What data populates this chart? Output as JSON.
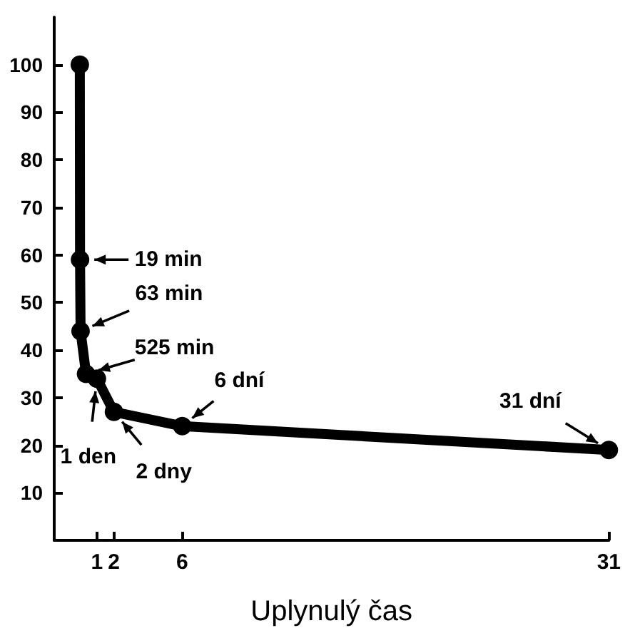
{
  "chart_data": {
    "type": "line",
    "xlabel": "Uplynulý čas",
    "x": [
      0,
      0.0132,
      0.0438,
      0.3646,
      1,
      2,
      6,
      31
    ],
    "series": [
      {
        "color": "#000000",
        "values": [
          100,
          59,
          44,
          35,
          34,
          27,
          24,
          19
        ]
      }
    ],
    "xlim": [
      -1.5,
      31
    ],
    "xticks": [
      1,
      2,
      6,
      31
    ],
    "ylim": [
      0,
      110
    ],
    "yticks": [
      10,
      20,
      30,
      40,
      50,
      60,
      70,
      80,
      90,
      100
    ],
    "grid": false,
    "marker": "circle",
    "line_style": "solid",
    "annotations": [
      {
        "text": "19 min",
        "x": 0.0132,
        "y": 59
      },
      {
        "text": "63 min",
        "x": 0.0438,
        "y": 44
      },
      {
        "text": "525 min",
        "x": 0.3646,
        "y": 35
      },
      {
        "text": "1 den",
        "x": 1,
        "y": 34
      },
      {
        "text": "2 dny",
        "x": 2,
        "y": 27
      },
      {
        "text": "6 dní",
        "x": 6,
        "y": 24
      },
      {
        "text": "31 dní",
        "x": 31,
        "y": 19
      }
    ]
  }
}
